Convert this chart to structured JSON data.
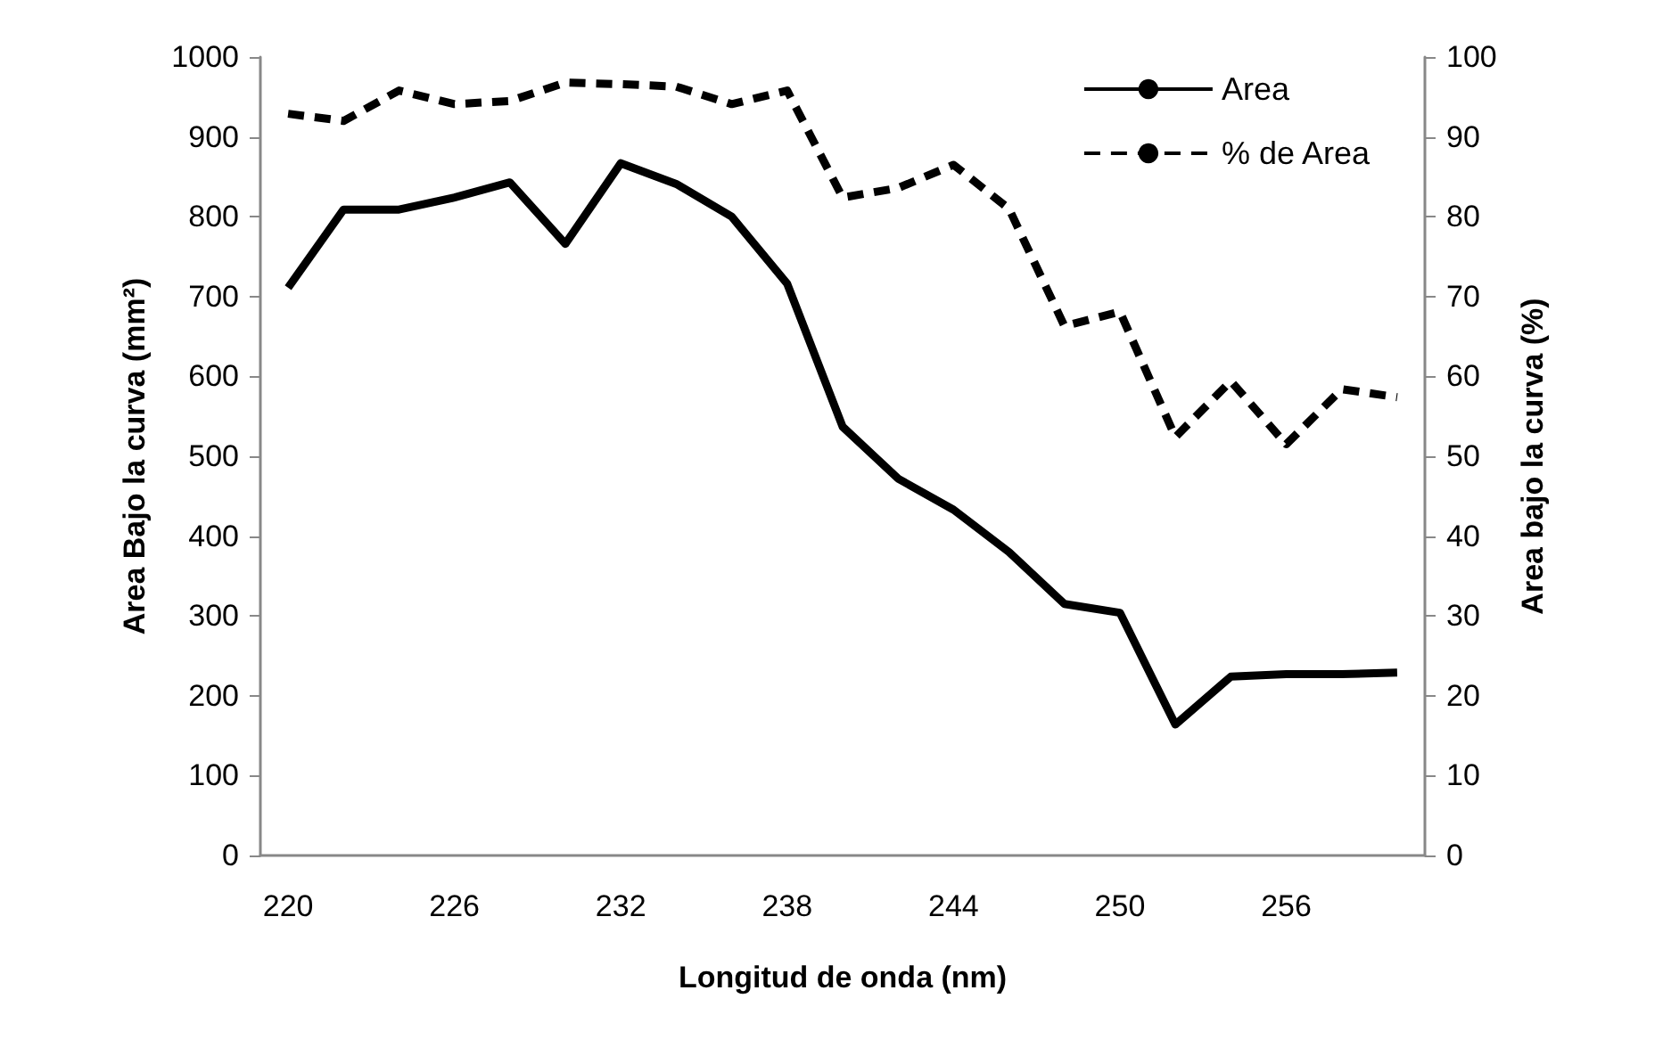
{
  "chart_data": {
    "type": "line",
    "xlabel": "Longitud de onda (nm)",
    "ylabel": "Area Bajo la curva (mm²)",
    "y2label": "Area bajo la curva (%)",
    "categories": [
      "220",
      null,
      null,
      "226",
      null,
      null,
      "232",
      null,
      null,
      "238",
      null,
      null,
      "244",
      null,
      null,
      "250",
      null,
      null,
      "256",
      null,
      null
    ],
    "series": [
      {
        "name": "Area",
        "color": "#000000",
        "line_style": "solid",
        "values": [
          711,
          809,
          809,
          824,
          843,
          766,
          867,
          841,
          800,
          716,
          537,
          472,
          433,
          380,
          315,
          304,
          164,
          224,
          227,
          227,
          229
        ]
      },
      {
        "name": "% de Area",
        "color": "#000000",
        "line_style": "dashed",
        "axis": "y2",
        "values": [
          92.9,
          92.0,
          95.8,
          94.1,
          94.5,
          96.8,
          96.6,
          96.3,
          94.1,
          95.8,
          82.4,
          83.6,
          86.5,
          81.0,
          66.3,
          68.1,
          52.4,
          59.4,
          51.5,
          58.4,
          57.4
        ]
      }
    ],
    "ylim": [
      0,
      1000
    ],
    "yticks": [
      0,
      100,
      200,
      300,
      400,
      500,
      600,
      700,
      800,
      900,
      1000
    ],
    "y2lim": [
      0,
      100
    ],
    "y2ticks": [
      0,
      10,
      20,
      30,
      40,
      50,
      60,
      70,
      80,
      90,
      100
    ],
    "grid": false,
    "legend": "top right",
    "marker": "none"
  }
}
